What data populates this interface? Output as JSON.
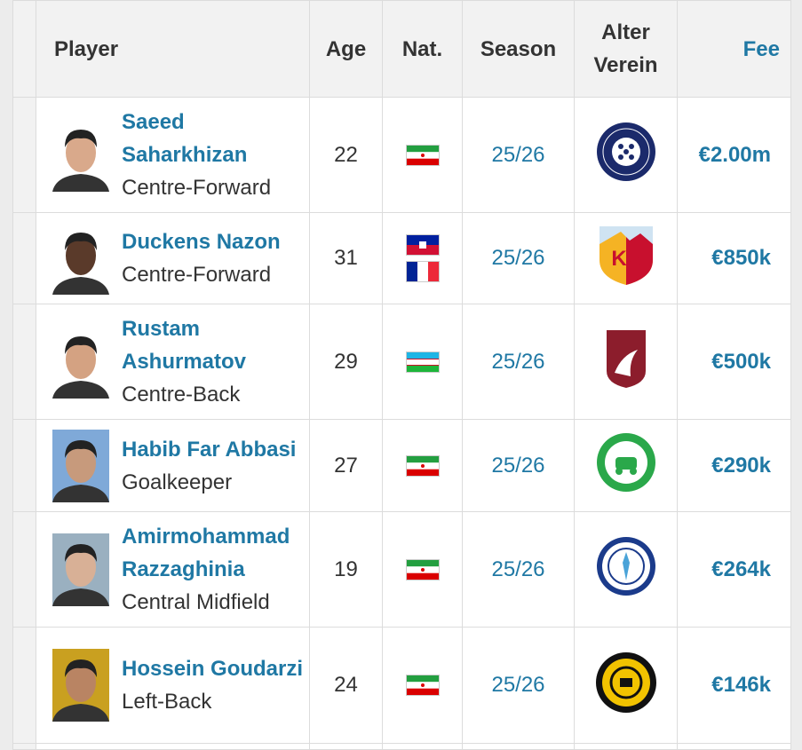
{
  "headers": {
    "player": "Player",
    "age": "Age",
    "nat": "Nat.",
    "season": "Season",
    "club": "Alter Verein",
    "fee": "Fee"
  },
  "colors": {
    "link": "#1f78a4",
    "header_bg": "#f2f2f2"
  },
  "rows": [
    {
      "name": "Saeed Saharkhizan",
      "position": "Centre-Forward",
      "age": "22",
      "nat": [
        "iran"
      ],
      "season": "25/26",
      "club_logo": "orenburg-crest",
      "fee": "€2.00m"
    },
    {
      "name": "Duckens Nazon",
      "position": "Centre-Forward",
      "age": "31",
      "nat": [
        "haiti",
        "france"
      ],
      "season": "25/26",
      "club_logo": "kayserispor-crest",
      "fee": "€850k"
    },
    {
      "name": "Rustam Ashurmatov",
      "position": "Centre-Back",
      "age": "29",
      "nat": [
        "uzbekistan"
      ],
      "season": "25/26",
      "club_logo": "rubin-kazan-crest",
      "fee": "€500k"
    },
    {
      "name": "Habib Far Abbasi",
      "position": "Goalkeeper",
      "age": "27",
      "nat": [
        "iran"
      ],
      "season": "25/26",
      "club_logo": "zob-ahan-crest",
      "fee": "€290k"
    },
    {
      "name": "Amirmohammad Razzaghinia",
      "position": "Central Midfield",
      "age": "19",
      "nat": [
        "iran"
      ],
      "season": "25/26",
      "club_logo": "esteghlal-khuzestan-crest",
      "fee": "€264k"
    },
    {
      "name": "Hossein Goudarzi",
      "position": "Left-Back",
      "age": "24",
      "nat": [
        "iran"
      ],
      "season": "25/26",
      "club_logo": "sepahan-crest",
      "fee": "€146k"
    }
  ]
}
